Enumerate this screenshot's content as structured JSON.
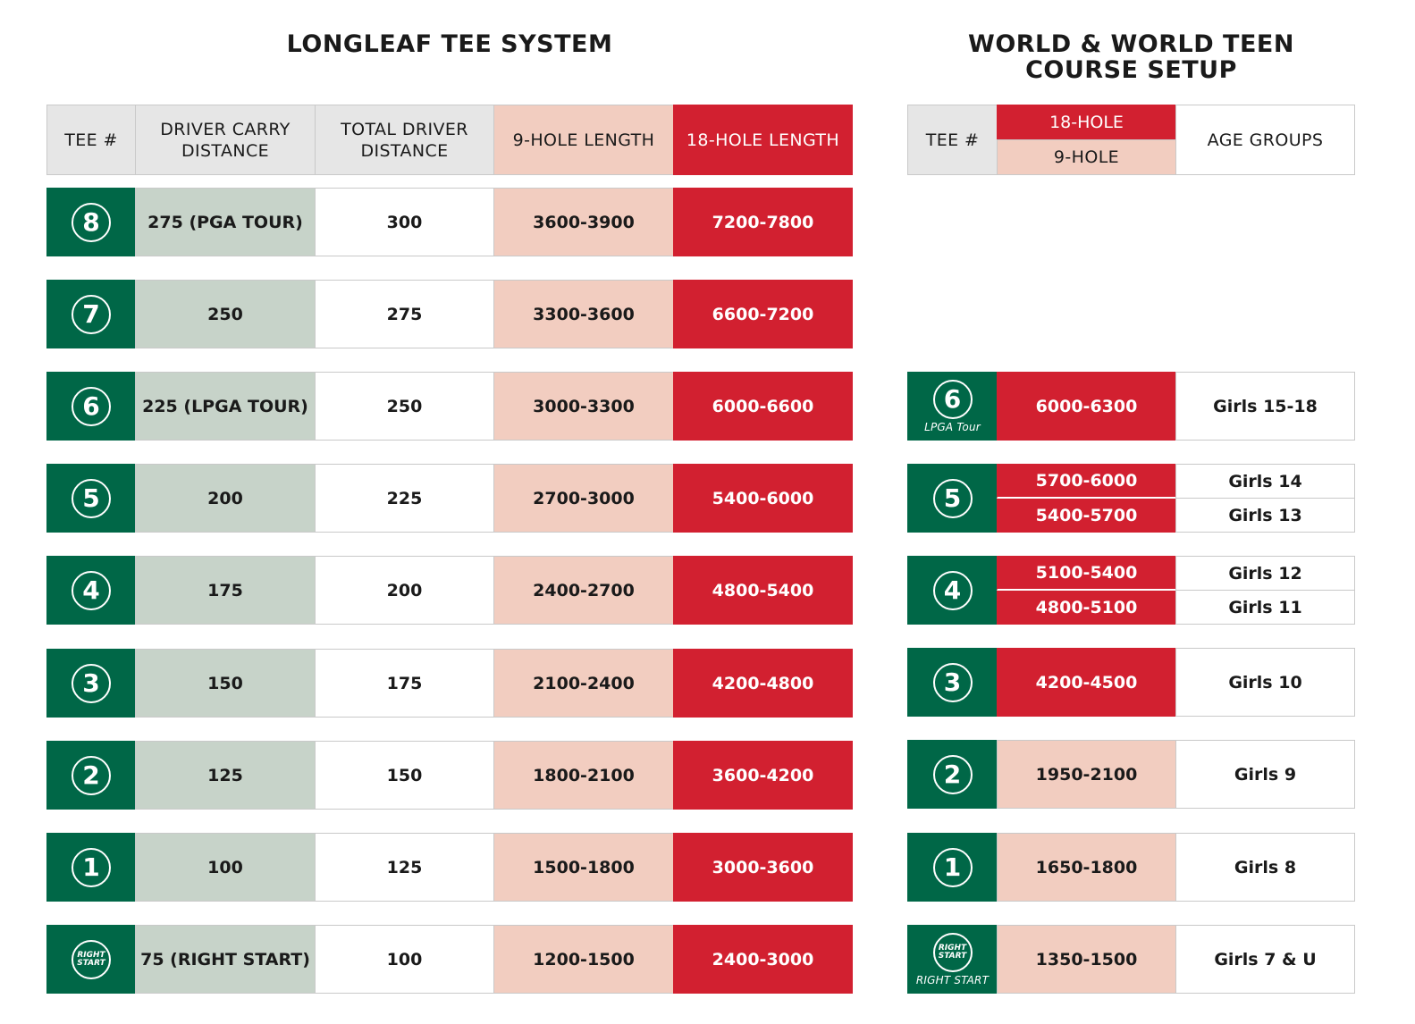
{
  "titles": {
    "left": "LONGLEAF TEE SYSTEM",
    "right_line1": "WORLD & WORLD TEEN",
    "right_line2": "COURSE SETUP"
  },
  "left_headers": {
    "tee": "TEE #",
    "carry_l1": "DRIVER CARRY",
    "carry_l2": "DISTANCE",
    "total_l1": "TOTAL DRIVER",
    "total_l2": "DISTANCE",
    "nine": "9-HOLE LENGTH",
    "eighteen": "18-HOLE LENGTH"
  },
  "right_headers": {
    "tee": "TEE #",
    "eighteen": "18-HOLE",
    "nine": "9-HOLE",
    "age": "AGE GROUPS"
  },
  "left_rows": [
    {
      "tee": "8",
      "carry": "275 (PGA TOUR)",
      "total": "300",
      "nine": "3600-3900",
      "eighteen": "7200-7800"
    },
    {
      "tee": "7",
      "carry": "250",
      "total": "275",
      "nine": "3300-3600",
      "eighteen": "6600-7200"
    },
    {
      "tee": "6",
      "carry": "225 (LPGA TOUR)",
      "total": "250",
      "nine": "3000-3300",
      "eighteen": "6000-6600"
    },
    {
      "tee": "5",
      "carry": "200",
      "total": "225",
      "nine": "2700-3000",
      "eighteen": "5400-6000"
    },
    {
      "tee": "4",
      "carry": "175",
      "total": "200",
      "nine": "2400-2700",
      "eighteen": "4800-5400"
    },
    {
      "tee": "3",
      "carry": "150",
      "total": "175",
      "nine": "2100-2400",
      "eighteen": "4200-4800"
    },
    {
      "tee": "2",
      "carry": "125",
      "total": "150",
      "nine": "1800-2100",
      "eighteen": "3600-4200"
    },
    {
      "tee": "1",
      "carry": "100",
      "total": "125",
      "nine": "1500-1800",
      "eighteen": "3000-3600"
    },
    {
      "tee": "RIGHT START",
      "carry": "75 (RIGHT START)",
      "total": "100",
      "nine": "1200-1500",
      "eighteen": "2400-3000"
    }
  ],
  "right_rows": {
    "tee6": {
      "tee": "6",
      "label": "LPGA Tour",
      "length": "6000-6300",
      "age": "Girls 15-18"
    },
    "tee5": {
      "tee": "5",
      "length_a": "5700-6000",
      "age_a": "Girls 14",
      "length_b": "5400-5700",
      "age_b": "Girls 13"
    },
    "tee4": {
      "tee": "4",
      "length_a": "5100-5400",
      "age_a": "Girls 12",
      "length_b": "4800-5100",
      "age_b": "Girls 11"
    },
    "tee3": {
      "tee": "3",
      "length": "4200-4500",
      "age": "Girls 10"
    },
    "tee2": {
      "tee": "2",
      "length": "1950-2100",
      "age": "Girls 9"
    },
    "tee1": {
      "tee": "1",
      "length": "1650-1800",
      "age": "Girls 8"
    },
    "teeRS": {
      "logo_l1": "RIGHT",
      "logo_l2": "START",
      "label": "RIGHT START",
      "length": "1350-1500",
      "age": "Girls 7 & U"
    }
  },
  "colors": {
    "green": "#006747",
    "sage": "#c7d3c9",
    "pink": "#f2cdc0",
    "red": "#d22030",
    "header_gray": "#e6e6e6"
  }
}
